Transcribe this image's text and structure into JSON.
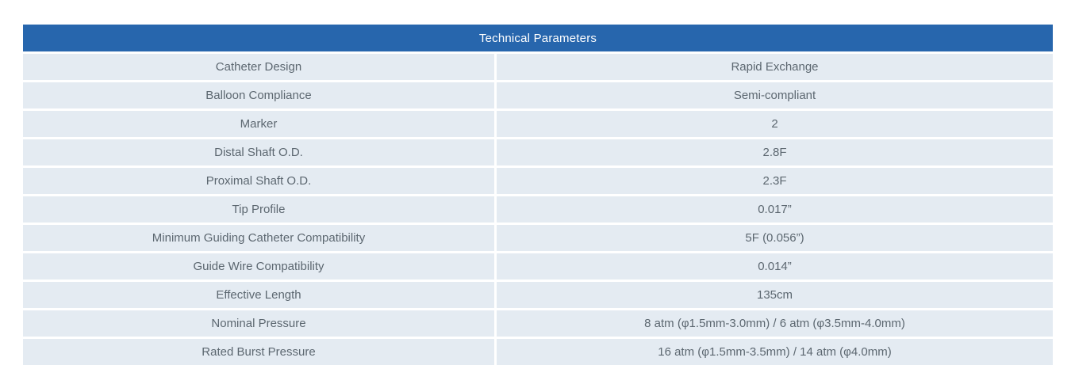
{
  "table": {
    "title": "Technical Parameters",
    "columns": [
      "parameter",
      "value"
    ],
    "rows": [
      {
        "label": "Catheter Design",
        "value": "Rapid Exchange"
      },
      {
        "label": "Balloon Compliance",
        "value": "Semi-compliant"
      },
      {
        "label": "Marker",
        "value": "2"
      },
      {
        "label": "Distal Shaft O.D.",
        "value": "2.8F"
      },
      {
        "label": "Proximal Shaft O.D.",
        "value": "2.3F"
      },
      {
        "label": "Tip Profile",
        "value": "0.017”"
      },
      {
        "label": "Minimum Guiding Catheter Compatibility",
        "value": "5F (0.056”)"
      },
      {
        "label": "Guide Wire Compatibility",
        "value": "0.014”"
      },
      {
        "label": "Effective Length",
        "value": "135cm"
      },
      {
        "label": "Nominal Pressure",
        "value": "8 atm (φ1.5mm-3.0mm) / 6 atm (φ3.5mm-4.0mm)"
      },
      {
        "label": "Rated Burst Pressure",
        "value": "16 atm (φ1.5mm-3.5mm) / 14 atm (φ4.0mm)"
      }
    ],
    "colors": {
      "header_bg": "#2766ad",
      "header_text": "#ffffff",
      "row_bg": "#e4ebf2",
      "cell_text": "#5c6770",
      "gutter": "#ffffff"
    }
  }
}
